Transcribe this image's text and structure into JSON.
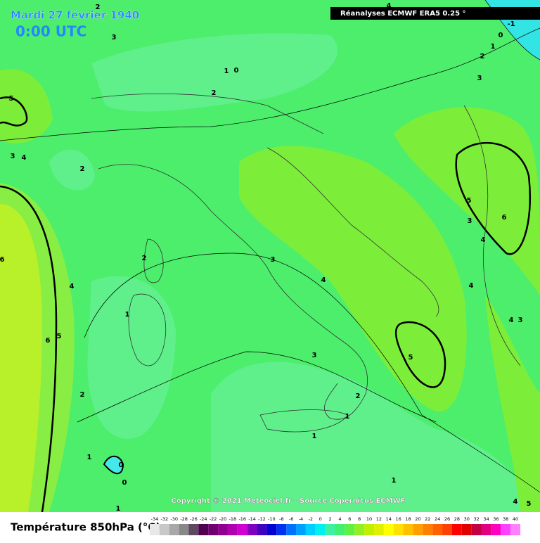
{
  "header": {
    "title": "Mardi 27 février 1940",
    "time": "0:00 UTC",
    "source": "Réanalyses ECMWF ERA5 0.25 °"
  },
  "copyright": "Copyright © 2021 Meteociel.fr - Source Copernicus ECMWF",
  "map": {
    "contour_labels": [
      "2",
      "3",
      "1",
      "0",
      "2",
      "5",
      "3",
      "4",
      "2",
      "6",
      "4",
      "2",
      "1",
      "6",
      "5",
      "2",
      "3",
      "4",
      "3",
      "2",
      "1",
      "1",
      "1",
      "0",
      "0",
      "1",
      "1",
      "5",
      "5",
      "3",
      "6",
      "4",
      "4",
      "4",
      "3",
      "4",
      "5",
      "0",
      "1",
      "2",
      "3",
      "-1",
      "4"
    ]
  },
  "legend": {
    "label": "Température 850hPa (°C)",
    "ticks": [
      -34,
      -32,
      -30,
      -28,
      -26,
      -24,
      -22,
      -20,
      -18,
      -16,
      -14,
      -12,
      -10,
      -8,
      -6,
      -4,
      -2,
      0,
      2,
      4,
      6,
      8,
      10,
      12,
      14,
      16,
      18,
      20,
      22,
      24,
      26,
      28,
      30,
      32,
      34,
      36,
      38,
      40
    ],
    "colors": [
      "#e8e8e8",
      "#c8c8c8",
      "#a8a8a8",
      "#888888",
      "#604860",
      "#500050",
      "#700070",
      "#900090",
      "#b000b0",
      "#d000d0",
      "#8000c0",
      "#4000c0",
      "#0000d0",
      "#0030f0",
      "#0070ff",
      "#00a0ff",
      "#00d0ff",
      "#00f0f0",
      "#40f0a0",
      "#40f070",
      "#60f040",
      "#90f020",
      "#c0f000",
      "#e0f000",
      "#ffff00",
      "#ffe000",
      "#ffc000",
      "#ffa000",
      "#ff8000",
      "#ff6000",
      "#ff4000",
      "#ff0000",
      "#e00000",
      "#c00040",
      "#e00080",
      "#ff00c0",
      "#ff40ff",
      "#ff80ff"
    ]
  }
}
